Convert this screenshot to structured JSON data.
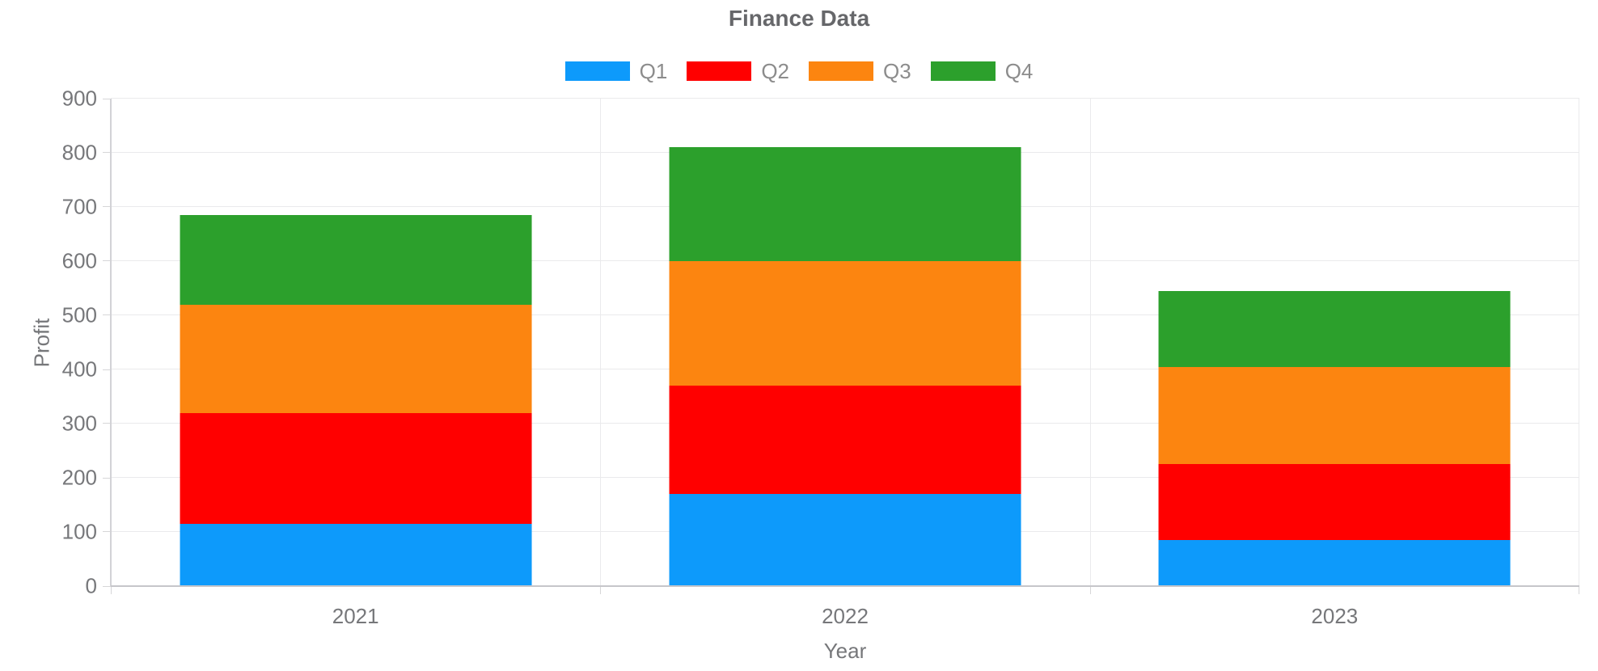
{
  "chart_data": {
    "type": "bar",
    "stacked": true,
    "title": "Finance Data",
    "xlabel": "Year",
    "ylabel": "Profit",
    "categories": [
      "2021",
      "2022",
      "2023"
    ],
    "series": [
      {
        "name": "Q1",
        "color": "#0D9AFB",
        "values": [
          115,
          170,
          85
        ]
      },
      {
        "name": "Q2",
        "color": "#FF0000",
        "values": [
          205,
          200,
          140
        ]
      },
      {
        "name": "Q3",
        "color": "#FC8510",
        "values": [
          200,
          230,
          180
        ]
      },
      {
        "name": "Q4",
        "color": "#2CA02C",
        "values": [
          165,
          210,
          140
        ]
      }
    ],
    "stack_totals": [
      685,
      810,
      545
    ],
    "ylim": [
      0,
      900
    ],
    "yticks": [
      0,
      100,
      200,
      300,
      400,
      500,
      600,
      700,
      800,
      900
    ],
    "grid": true,
    "legend_position": "top",
    "bar_width_fraction": 0.2395
  }
}
